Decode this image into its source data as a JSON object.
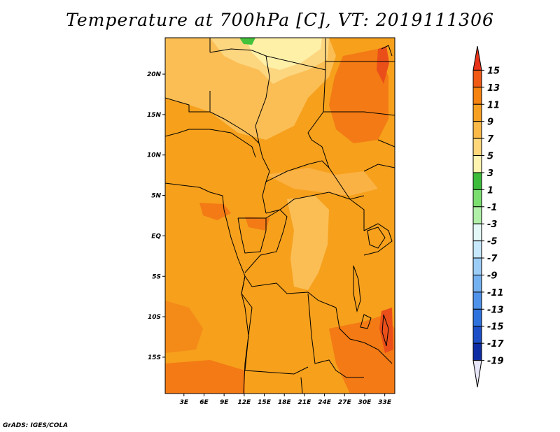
{
  "title": "Temperature at 700hPa [C], VT: 2019111306",
  "credit": "GrADS: IGES/COLA",
  "axes": {
    "lat_labels": [
      "20N",
      "15N",
      "10N",
      "5N",
      "EQ",
      "5S",
      "10S",
      "15S"
    ],
    "lat_values": [
      20,
      15,
      10,
      5,
      0,
      -5,
      -10,
      -15
    ],
    "lon_labels": [
      "3E",
      "6E",
      "9E",
      "12E",
      "15E",
      "18E",
      "21E",
      "24E",
      "27E",
      "30E",
      "33E"
    ],
    "lon_values": [
      3,
      6,
      9,
      12,
      15,
      18,
      21,
      24,
      27,
      30,
      33
    ],
    "lat_range": [
      -19.5,
      24.5
    ],
    "lon_range": [
      0.2,
      34.5
    ]
  },
  "colorbar": {
    "labels": [
      "15",
      "13",
      "11",
      "9",
      "7",
      "5",
      "3",
      "1",
      "-1",
      "-3",
      "-5",
      "-7",
      "-9",
      "-11",
      "-13",
      "-15",
      "-17",
      "-19"
    ],
    "colors": [
      "#e8331a",
      "#f05a14",
      "#f6820f",
      "#f8a021",
      "#fbb948",
      "#fdd77a",
      "#fff4b0",
      "#3cbc3a",
      "#7adf6e",
      "#b0f0a8",
      "#e4f8f8",
      "#c6e8fa",
      "#9ccdf6",
      "#74b1f1",
      "#4f92ea",
      "#2e72de",
      "#1c4fc7",
      "#0e2ca3",
      "#0a1870",
      "#e6e6f8"
    ]
  },
  "map_colors": {
    "ocean": "#f6a01c",
    "land_base": "#f8a325",
    "warm": "#f37a14",
    "hot": "#ea4f1a",
    "cool": "#fbbe55",
    "cooler": "#fdd680",
    "coolest": "#fff0a8",
    "green": "#44c23c"
  }
}
